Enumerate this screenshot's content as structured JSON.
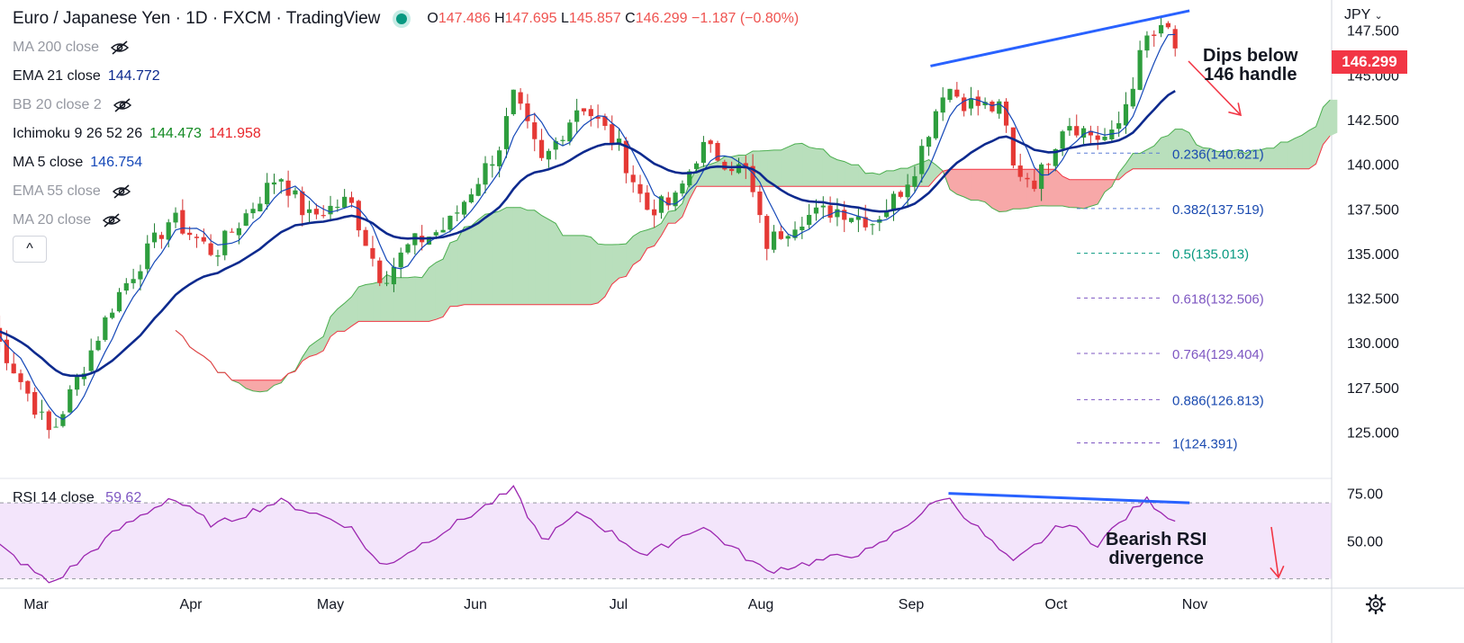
{
  "header": {
    "title": "Euro / Japanese Yen · 1D · FXCM · TradingView",
    "open_label": "O",
    "open": "147.486",
    "high_label": "H",
    "high": "147.695",
    "low_label": "L",
    "low": "145.857",
    "close_label": "C",
    "close": "146.299",
    "change": "−1.187 (−0.80%)"
  },
  "currency": "JPY",
  "indicators": [
    {
      "name": "MA 200 close",
      "value": "",
      "hidden": true
    },
    {
      "name": "EMA 21 close",
      "value": "144.772",
      "color": "#0d2a8e",
      "hidden": false
    },
    {
      "name": "BB 20 close 2",
      "value": "",
      "hidden": true
    },
    {
      "name": "Ichimoku 9 26 52 26",
      "value": "144.473",
      "value2": "141.958",
      "color": "#138a23",
      "color2": "#e8262b",
      "hidden": false
    },
    {
      "name": "MA 5 close",
      "value": "146.754",
      "color": "#1548b8",
      "hidden": false
    },
    {
      "name": "EMA 55 close",
      "value": "",
      "hidden": true
    },
    {
      "name": "MA 20 close",
      "value": "",
      "hidden": true
    }
  ],
  "collapse_symbol": "^",
  "current_price": "146.299",
  "annotations": {
    "top_line1": "Dips below",
    "top_line2": "146 handle",
    "bottom_line1": "Bearish RSI",
    "bottom_line2": "divergence"
  },
  "rsi": {
    "name": "RSI 14 close",
    "value": "59.62"
  },
  "colors": {
    "up": "#089981",
    "down": "#f23645",
    "candle_up": "#26a69a",
    "ma5": "#1548b8",
    "ema21": "#0d2a8e",
    "cloud_green": "#b9dfbc",
    "cloud_red": "#f7a8a8",
    "fib": "#0d2a8e",
    "rsi": "#9c27b0",
    "trend": "#2962ff"
  },
  "chart_data": {
    "type": "candlestick",
    "title": "Euro / Japanese Yen · 1D · FXCM · TradingView",
    "y_axis": {
      "ticks": [
        147.5,
        145.0,
        142.5,
        140.0,
        137.5,
        135.0,
        132.5,
        130.0,
        127.5,
        125.0
      ],
      "tick_labels": [
        "147.500",
        "145.000",
        "142.500",
        "140.000",
        "137.500",
        "135.000",
        "132.500",
        "130.000",
        "127.500",
        "125.000"
      ],
      "range": [
        122.4,
        149.2
      ]
    },
    "x_axis": {
      "months": [
        "Mar",
        "Apr",
        "May",
        "Jun",
        "Jul",
        "Aug",
        "Sep",
        "Oct",
        "Nov"
      ]
    },
    "price_anchors": [
      {
        "date": "Feb 22",
        "close": 130.7
      },
      {
        "date": "Mar 04",
        "close": 124.8
      },
      {
        "date": "Mar 08",
        "close": 127.2
      },
      {
        "date": "Mar 17",
        "close": 132.5
      },
      {
        "date": "Mar 28",
        "close": 137.0
      },
      {
        "date": "Apr 06",
        "close": 135.0
      },
      {
        "date": "Apr 20",
        "close": 139.5
      },
      {
        "date": "Apr 26",
        "close": 137.0
      },
      {
        "date": "May 05",
        "close": 138.0
      },
      {
        "date": "May 12",
        "close": 133.5
      },
      {
        "date": "May 18",
        "close": 135.5
      },
      {
        "date": "May 26",
        "close": 136.5
      },
      {
        "date": "Jun 06",
        "close": 141.0
      },
      {
        "date": "Jun 09",
        "close": 143.8
      },
      {
        "date": "Jun 15",
        "close": 140.0
      },
      {
        "date": "Jun 23",
        "close": 143.5
      },
      {
        "date": "Jul 01",
        "close": 141.0
      },
      {
        "date": "Jul 07",
        "close": 137.5
      },
      {
        "date": "Jul 13",
        "close": 137.8
      },
      {
        "date": "Jul 19",
        "close": 141.0
      },
      {
        "date": "Jul 29",
        "close": 139.5
      },
      {
        "date": "Aug 02",
        "close": 135.5
      },
      {
        "date": "Aug 09",
        "close": 137.0
      },
      {
        "date": "Aug 17",
        "close": 137.5
      },
      {
        "date": "Aug 24",
        "close": 136.8
      },
      {
        "date": "Aug 29",
        "close": 138.2
      },
      {
        "date": "Sep 02",
        "close": 140.0
      },
      {
        "date": "Sep 08",
        "close": 144.5
      },
      {
        "date": "Sep 12",
        "close": 143.5
      },
      {
        "date": "Sep 20",
        "close": 143.0
      },
      {
        "date": "Sep 22",
        "close": 139.8
      },
      {
        "date": "Sep 27",
        "close": 139.0
      },
      {
        "date": "Oct 03",
        "close": 142.5
      },
      {
        "date": "Oct 10",
        "close": 141.5
      },
      {
        "date": "Oct 14",
        "close": 141.5
      },
      {
        "date": "Oct 18",
        "close": 144.5
      },
      {
        "date": "Oct 21",
        "close": 147.0
      },
      {
        "date": "Oct 24",
        "close": 147.3
      },
      {
        "date": "Oct 26",
        "close": 147.5
      },
      {
        "date": "Oct 28",
        "close": 146.3
      }
    ],
    "fibonacci": [
      {
        "level": "0.236",
        "price": 140.621,
        "label": "0.236(140.621)"
      },
      {
        "level": "0.382",
        "price": 137.519,
        "label": "0.382(137.519)"
      },
      {
        "level": "0.5",
        "price": 135.013,
        "label": "0.5(135.013)"
      },
      {
        "level": "0.618",
        "price": 132.506,
        "label": "0.618(132.506)"
      },
      {
        "level": "0.764",
        "price": 129.404,
        "label": "0.764(129.404)"
      },
      {
        "level": "0.886",
        "price": 126.813,
        "label": "0.886(126.813)"
      },
      {
        "level": "1",
        "price": 124.391,
        "label": "1(124.391)"
      }
    ],
    "trendline": [
      {
        "date": "Sep 05",
        "price": 145.5
      },
      {
        "date": "Oct 28",
        "price": 148.6
      }
    ],
    "rsi": {
      "ticks": [
        75.0,
        50.0
      ],
      "tick_labels": [
        "75.00",
        "50.00"
      ],
      "band": [
        30,
        70
      ],
      "range": [
        27,
        80
      ],
      "anchors": [
        {
          "date": "Feb 22",
          "value": 50
        },
        {
          "date": "Mar 04",
          "value": 27
        },
        {
          "date": "Mar 17",
          "value": 55
        },
        {
          "date": "Mar 28",
          "value": 73
        },
        {
          "date": "Apr 06",
          "value": 58
        },
        {
          "date": "Apr 20",
          "value": 71
        },
        {
          "date": "May 05",
          "value": 58
        },
        {
          "date": "May 12",
          "value": 36
        },
        {
          "date": "Jun 09",
          "value": 77
        },
        {
          "date": "Jun 15",
          "value": 50
        },
        {
          "date": "Jun 23",
          "value": 65
        },
        {
          "date": "Jul 07",
          "value": 42
        },
        {
          "date": "Jul 19",
          "value": 58
        },
        {
          "date": "Aug 02",
          "value": 34
        },
        {
          "date": "Aug 24",
          "value": 45
        },
        {
          "date": "Sep 08",
          "value": 74
        },
        {
          "date": "Sep 22",
          "value": 38
        },
        {
          "date": "Oct 03",
          "value": 60
        },
        {
          "date": "Oct 10",
          "value": 48
        },
        {
          "date": "Oct 21",
          "value": 72
        },
        {
          "date": "Oct 28",
          "value": 59.62
        }
      ],
      "divergence_line": [
        {
          "date": "Sep 05",
          "value": 75
        },
        {
          "date": "Oct 28",
          "value": 70
        }
      ]
    }
  }
}
